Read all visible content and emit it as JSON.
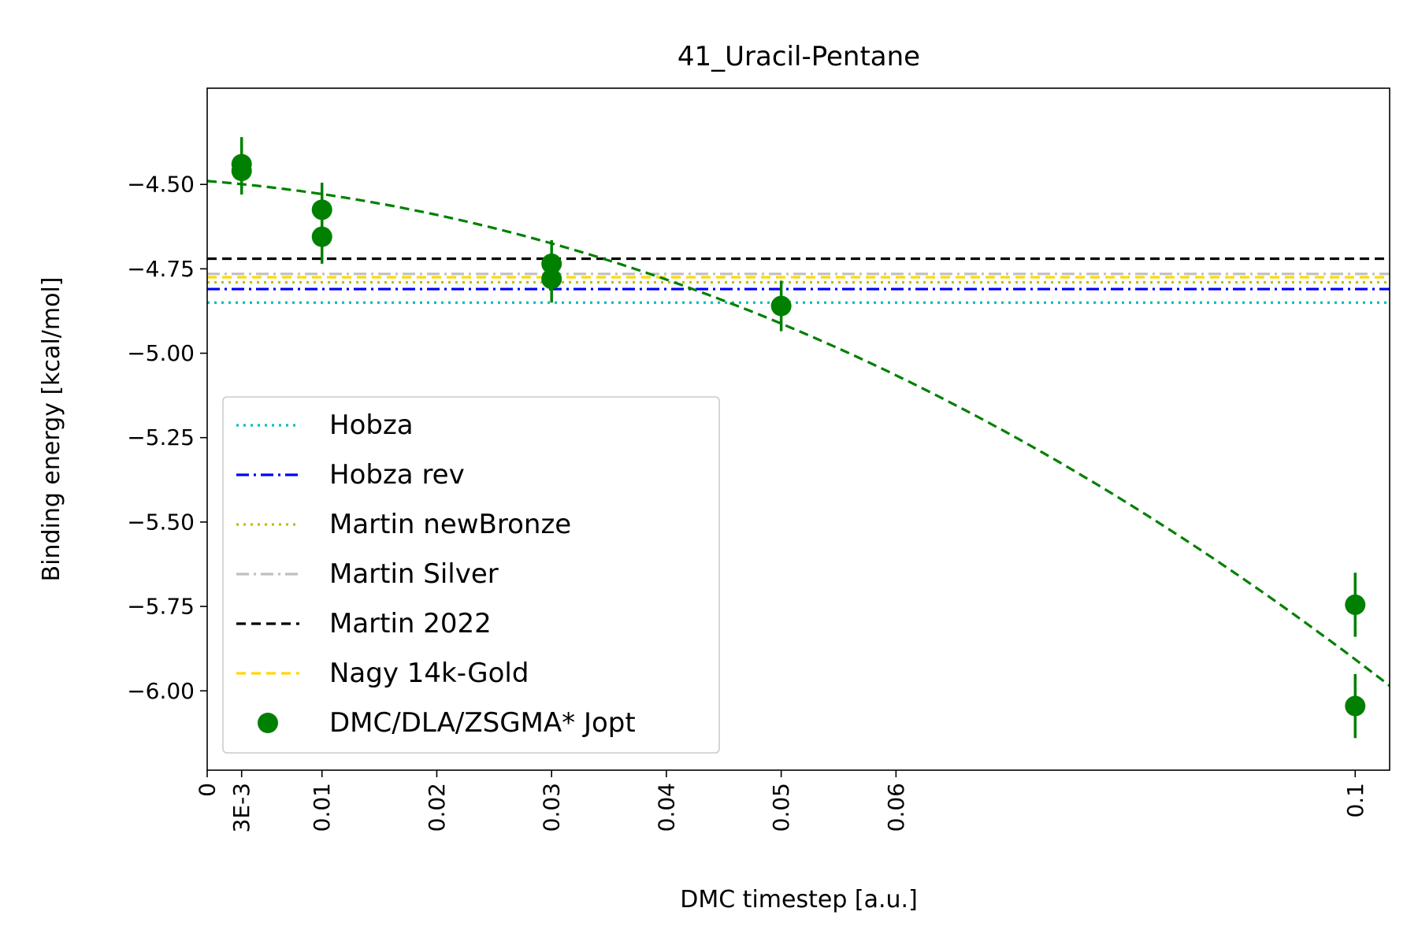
{
  "chart_data": {
    "type": "scatter",
    "title": "41_Uracil-Pentane",
    "xlabel": "DMC timestep [a.u.]",
    "ylabel": "Binding energy [kcal/mol]",
    "xlim": [
      0,
      0.103
    ],
    "ylim": [
      -6.235,
      -4.215
    ],
    "x_ticks": [
      {
        "value": 0,
        "label": "0"
      },
      {
        "value": 0.003,
        "label": "3E-3"
      },
      {
        "value": 0.01,
        "label": "0.01"
      },
      {
        "value": 0.02,
        "label": "0.02"
      },
      {
        "value": 0.03,
        "label": "0.03"
      },
      {
        "value": 0.04,
        "label": "0.04"
      },
      {
        "value": 0.05,
        "label": "0.05"
      },
      {
        "value": 0.06,
        "label": "0.06"
      },
      {
        "value": 0.1,
        "label": "0.1"
      }
    ],
    "y_ticks": [
      {
        "value": -4.5,
        "label": "−4.50"
      },
      {
        "value": -4.75,
        "label": "−4.75"
      },
      {
        "value": -5.0,
        "label": "−5.00"
      },
      {
        "value": -5.25,
        "label": "−5.25"
      },
      {
        "value": -5.5,
        "label": "−5.50"
      },
      {
        "value": -5.75,
        "label": "−5.75"
      },
      {
        "value": -6.0,
        "label": "−6.00"
      }
    ],
    "reference_lines": [
      {
        "name": "Hobza",
        "y": -4.85,
        "color": "#00bfbf",
        "dash": "dotted"
      },
      {
        "name": "Hobza rev",
        "y": -4.81,
        "color": "#0000ff",
        "dash": "dashdot"
      },
      {
        "name": "Martin newBronze",
        "y": -4.79,
        "color": "#bfbf00",
        "dash": "dotted"
      },
      {
        "name": "Martin Silver",
        "y": -4.765,
        "color": "#c0c0c0",
        "dash": "dashdot"
      },
      {
        "name": "Martin 2022",
        "y": -4.72,
        "color": "#000000",
        "dash": "dashed"
      },
      {
        "name": "Nagy 14k-Gold",
        "y": -4.775,
        "color": "#ffd700",
        "dash": "dashed"
      }
    ],
    "series": [
      {
        "name": "DMC/DLA/ZSGMA* Jopt",
        "color": "#008000",
        "points": [
          {
            "x": 0.003,
            "y": -4.44,
            "err": 0.08
          },
          {
            "x": 0.003,
            "y": -4.46,
            "err": 0.07
          },
          {
            "x": 0.01,
            "y": -4.575,
            "err": 0.08
          },
          {
            "x": 0.01,
            "y": -4.655,
            "err": 0.08
          },
          {
            "x": 0.03,
            "y": -4.735,
            "err": 0.07
          },
          {
            "x": 0.03,
            "y": -4.78,
            "err": 0.07
          },
          {
            "x": 0.05,
            "y": -4.86,
            "err": 0.075
          },
          {
            "x": 0.1,
            "y": -5.745,
            "err": 0.095
          },
          {
            "x": 0.1,
            "y": -6.045,
            "err": 0.095
          }
        ]
      }
    ],
    "fit": {
      "color": "#008000",
      "dash": "dashed",
      "a": -4.49,
      "b": -2.72,
      "c": -114.5
    },
    "legend": "lower-left"
  }
}
